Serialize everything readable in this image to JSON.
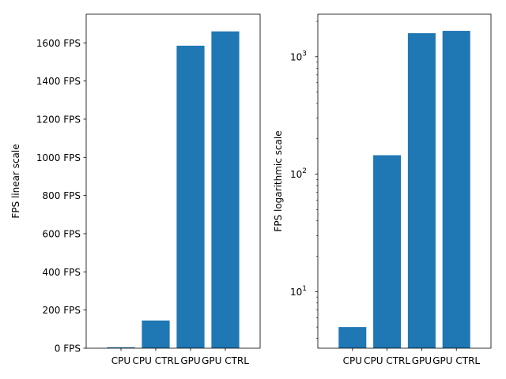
{
  "chart_data": [
    {
      "type": "bar",
      "categories": [
        "CPU",
        "CPU CTRL",
        "GPU",
        "GPU CTRL"
      ],
      "values": [
        5,
        145,
        1585,
        1660
      ],
      "xlabel": "",
      "ylabel": "FPS linear scale",
      "yscale": "linear",
      "ylim": [
        0,
        1750
      ],
      "yticks": [
        0,
        200,
        400,
        600,
        800,
        1000,
        1200,
        1400,
        1600
      ],
      "ytick_labels": [
        "0 FPS",
        "200 FPS",
        "400 FPS",
        "600 FPS",
        "800 FPS",
        "1000 FPS",
        "1200 FPS",
        "1400 FPS",
        "1600 FPS"
      ],
      "bar_color": "#1f77b4",
      "grid": false
    },
    {
      "type": "bar",
      "categories": [
        "CPU",
        "CPU CTRL",
        "GPU",
        "GPU CTRL"
      ],
      "values": [
        5,
        145,
        1585,
        1660
      ],
      "xlabel": "",
      "ylabel": "FPS logarithmic scale",
      "yscale": "log",
      "ylim": [
        3.3,
        2300
      ],
      "yticks": [
        10,
        100,
        1000
      ],
      "ytick_labels": [
        "10",
        "10",
        "10"
      ],
      "ytick_exponents": [
        "1",
        "2",
        "3"
      ],
      "bar_color": "#1f77b4",
      "grid": false
    }
  ]
}
